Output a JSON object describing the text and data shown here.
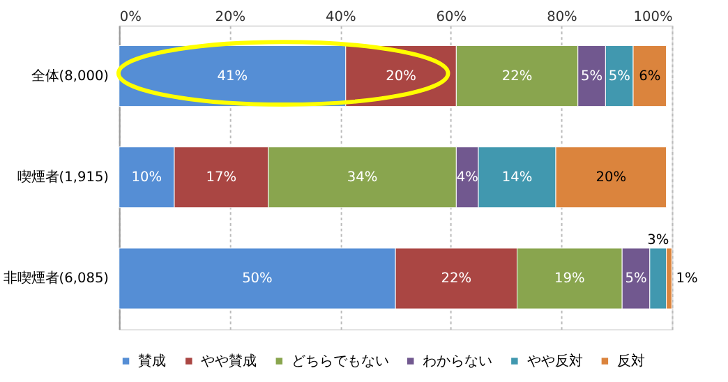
{
  "chart_data": {
    "type": "bar",
    "orientation": "horizontal",
    "stacked": true,
    "categories": [
      "全体(8,000)",
      "喫煙者(1,915)",
      "非喫煙者(6,085)"
    ],
    "series": [
      {
        "name": "賛成",
        "color": "#558ed5",
        "values": [
          41,
          10,
          50
        ],
        "value_labels": [
          "41%",
          "10%",
          "50%"
        ]
      },
      {
        "name": "やや賛成",
        "color": "#aa4643",
        "values": [
          20,
          17,
          22
        ],
        "value_labels": [
          "20%",
          "17%",
          "22%"
        ]
      },
      {
        "name": "どちらでもない",
        "color": "#89a54e",
        "values": [
          22,
          34,
          19
        ],
        "value_labels": [
          "22%",
          "34%",
          "19%"
        ]
      },
      {
        "name": "わからない",
        "color": "#71588f",
        "values": [
          5,
          4,
          5
        ],
        "value_labels": [
          "5%",
          "4%",
          "5%"
        ]
      },
      {
        "name": "やや反対",
        "color": "#4198af",
        "values": [
          5,
          14,
          3
        ],
        "value_labels": [
          "5%",
          "14%",
          "3%"
        ]
      },
      {
        "name": "反対",
        "color": "#db843d",
        "values": [
          6,
          20,
          1
        ],
        "value_labels": [
          "6%",
          "20%",
          "1%"
        ]
      }
    ],
    "xlim": [
      0,
      100
    ],
    "xticks": [
      {
        "value": 0,
        "label": "0%"
      },
      {
        "value": 20,
        "label": "20%"
      },
      {
        "value": 40,
        "label": "40%"
      },
      {
        "value": 60,
        "label": "60%"
      },
      {
        "value": 80,
        "label": "80%"
      },
      {
        "value": 100,
        "label": "100%"
      }
    ],
    "grid": "x",
    "legend": "bottom"
  }
}
